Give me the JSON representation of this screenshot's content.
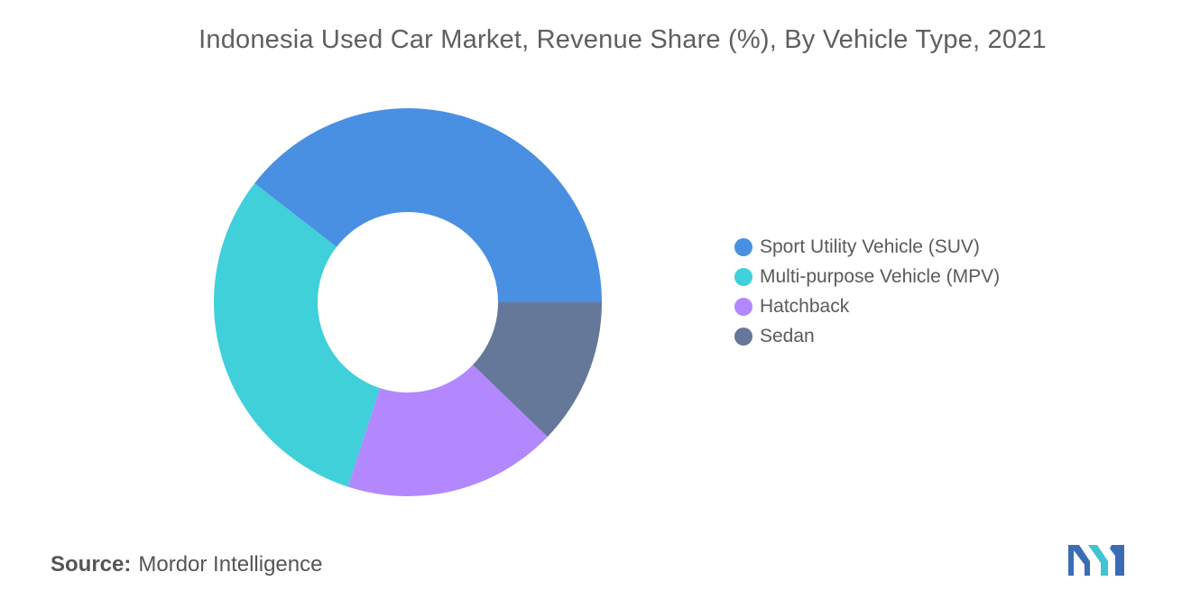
{
  "chart_data": {
    "type": "pie",
    "title": "Indonesia Used Car Market, Revenue Share (%), By Vehicle Type, 2021",
    "categories": [
      "Sport Utility Vehicle (SUV)",
      "Multi-purpose Vehicle (MPV)",
      "Hatchback",
      "Sedan"
    ],
    "values": [
      39.5,
      30.5,
      17.8,
      12.2
    ],
    "colors": [
      "#4a90e2",
      "#40d0da",
      "#b388ff",
      "#657899"
    ],
    "donut": true,
    "legend_position": "right"
  },
  "source": {
    "label": "Source:",
    "text": "Mordor Intelligence"
  },
  "logo": {
    "icon": "mordor-intelligence-logo-icon",
    "colors": [
      "#3a6db5",
      "#40c4d0"
    ]
  }
}
